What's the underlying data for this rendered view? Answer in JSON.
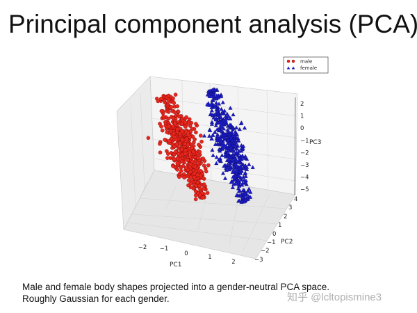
{
  "slide": {
    "title": "Principal component analysis (PCA)",
    "caption_line1": "Male and female body shapes projected into a gender-neutral PCA space.",
    "caption_line2": "Roughly Gaussian for each gender.",
    "watermark": "知乎 @lcltopismine3"
  },
  "chart_data": {
    "type": "scatter",
    "projection": "3d",
    "xlabel": "PC1",
    "ylabel": "PC2",
    "zlabel": "PC3",
    "x_ticks": [
      "−2",
      "−1",
      "0",
      "1",
      "2"
    ],
    "y_ticks": [
      "−3",
      "−2",
      "−1",
      "0",
      "1",
      "2",
      "3",
      "4"
    ],
    "z_ticks": [
      "2",
      "1",
      "0",
      "−1",
      "−2",
      "−3",
      "−4",
      "−5"
    ],
    "legend_position": "top-right",
    "grid": true,
    "series": [
      {
        "name": "male",
        "marker": "circle",
        "color": "#e8271d",
        "cluster": {
          "x_range": [
            -1.7,
            -0.2
          ],
          "y_range": [
            -2.5,
            0.5
          ],
          "z_range": [
            -4.6,
            1.8
          ],
          "points": 520
        }
      },
      {
        "name": "female",
        "marker": "triangle",
        "color": "#1b1bc4",
        "cluster": {
          "x_range": [
            0.4,
            1.6
          ],
          "y_range": [
            -0.5,
            2.5
          ],
          "z_range": [
            -4.9,
            2.2
          ],
          "points": 520
        }
      }
    ]
  },
  "colors": {
    "male": "#e8271d",
    "female": "#1b1bc4",
    "pane": "#f1f1f1",
    "grid": "#d6d6d6"
  }
}
